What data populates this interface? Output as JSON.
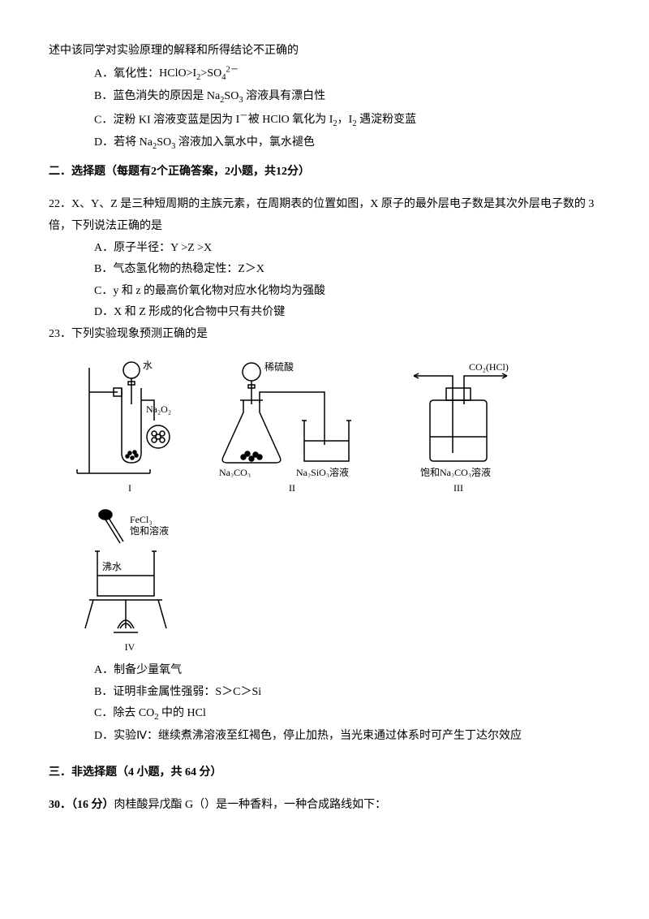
{
  "opening_line": "述中该同学对实验原理的解释和所得结论不正确的",
  "q21_options": {
    "A": {
      "prefix": "A．氧化性：",
      "formula_html": "HClO>I<sub>2</sub>>SO<sub>4</sub><sup>2－</sup>"
    },
    "B": {
      "prefix": "B．蓝色消失的原因是 ",
      "formula_html": "Na<sub>2</sub>SO<sub>3</sub> 溶液具有漂白性"
    },
    "C": {
      "prefix": "C．淀粉 KI 溶液变蓝是因为 ",
      "formula_html": "I<sup>－</sup>被 HClO 氧化为 I<sub>2</sub>，I<sub>2</sub> 遇淀粉变蓝"
    },
    "D": {
      "prefix": "D．若将 ",
      "formula_html": "Na<sub>2</sub>SO<sub>3</sub> 溶液加入氯水中，氯水褪色"
    }
  },
  "section2_title": "二．选择题（每题有2个正确答案，2小题，共12分）",
  "q22": {
    "stem_html": "22．X、Y、Z 是三种短周期的主族元素，在周期表的位置如图，X 原子的最外层电子数是其次外层电子数的 3 倍，下列说法正确的是",
    "A": "A．原子半径：Y >Z >X",
    "B": "B．气态氢化物的热稳定性：Z＞X",
    "C": "C．y 和 z 的最高价氧化物对应水化物均为强酸",
    "D": "D．X 和 Z 形成的化合物中只有共价键"
  },
  "q23": {
    "stem": "23．下列实验现象预测正确的是",
    "diagrams": {
      "I": {
        "label": "I",
        "annot_water": "水",
        "annot_na2o2": "Na₂O₂"
      },
      "II": {
        "label": "II",
        "annot_acid": "稀硫酸",
        "annot_na2co3": "Na₂CO₃",
        "annot_na2sio3": "Na₂SiO₃溶液"
      },
      "III": {
        "label": "III",
        "annot_gas": "CO₂(HCl)",
        "annot_sol": "饱和Na₂CO₃溶液"
      },
      "IV": {
        "label": "IV",
        "annot_fecl3": "FeCl₃",
        "annot_sat": "饱和溶液",
        "annot_boil": "沸水"
      }
    },
    "A": "A．制备少量氧气",
    "B": "B．证明非金属性强弱：S＞C＞Si",
    "C_html": "C．除去 CO<sub>2</sub> 中的 HCl",
    "D": "D．实验Ⅳ：继续煮沸溶液至红褐色，停止加热，当光束通过体系时可产生丁达尔效应"
  },
  "section3_title": "三．非选择题（4 小题，共 64 分）",
  "q30_html": "<span class=\"bold\">30．（16 分）</span>肉桂酸异戊酯 G（）是一种香料，一种合成路线如下：",
  "colors": {
    "text": "#000000",
    "bg": "#ffffff",
    "stroke": "#000000"
  }
}
